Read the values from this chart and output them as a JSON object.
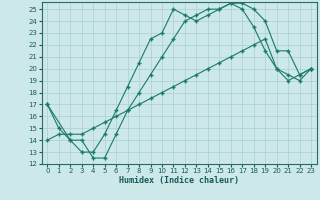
{
  "xlabel": "Humidex (Indice chaleur)",
  "bg_color": "#cce8e8",
  "line_color": "#1a7a6a",
  "grid_color": "#aacfcf",
  "xlim": [
    -0.5,
    23.5
  ],
  "ylim": [
    12,
    25.6
  ],
  "yticks": [
    12,
    13,
    14,
    15,
    16,
    17,
    18,
    19,
    20,
    21,
    22,
    23,
    24,
    25
  ],
  "xticks": [
    0,
    1,
    2,
    3,
    4,
    5,
    6,
    7,
    8,
    9,
    10,
    11,
    12,
    13,
    14,
    15,
    16,
    17,
    18,
    19,
    20,
    21,
    22,
    23
  ],
  "line1_x": [
    0,
    1,
    2,
    3,
    4,
    5,
    6,
    7,
    8,
    9,
    10,
    11,
    12,
    13,
    14,
    15,
    16,
    17,
    18,
    19,
    20,
    21,
    22,
    23
  ],
  "line1_y": [
    17.0,
    15.0,
    14.0,
    13.0,
    13.0,
    14.5,
    16.5,
    18.5,
    20.5,
    22.5,
    23.0,
    25.0,
    24.5,
    24.0,
    24.5,
    25.0,
    25.5,
    25.0,
    23.5,
    21.5,
    20.0,
    19.5,
    19.0,
    20.0
  ],
  "line2_x": [
    0,
    2,
    3,
    4,
    5,
    6,
    7,
    8,
    9,
    10,
    11,
    12,
    13,
    14,
    15,
    16,
    17,
    18,
    19,
    20,
    21,
    22,
    23
  ],
  "line2_y": [
    17.0,
    14.0,
    14.0,
    12.5,
    12.5,
    14.5,
    16.5,
    18.0,
    19.5,
    21.0,
    22.5,
    24.0,
    24.5,
    25.0,
    25.0,
    25.5,
    25.5,
    25.0,
    24.0,
    21.5,
    21.5,
    19.5,
    20.0
  ],
  "line3_x": [
    0,
    1,
    2,
    3,
    4,
    5,
    6,
    7,
    8,
    9,
    10,
    11,
    12,
    13,
    14,
    15,
    16,
    17,
    18,
    19,
    20,
    21,
    22,
    23
  ],
  "line3_y": [
    14.0,
    14.5,
    14.5,
    14.5,
    15.0,
    15.5,
    16.0,
    16.5,
    17.0,
    17.5,
    18.0,
    18.5,
    19.0,
    19.5,
    20.0,
    20.5,
    21.0,
    21.5,
    22.0,
    22.5,
    20.0,
    19.0,
    19.5,
    20.0
  ]
}
